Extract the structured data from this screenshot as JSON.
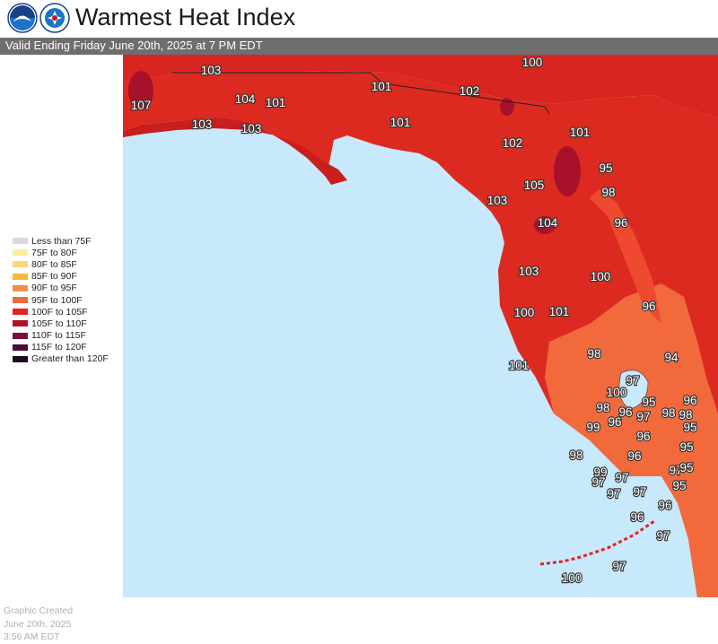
{
  "header": {
    "title": "Warmest Heat Index",
    "subtitle": "Valid Ending Friday June 20th, 2025 at 7 PM EDT",
    "logos": [
      "noaa-logo",
      "nws-logo"
    ]
  },
  "legend": {
    "items": [
      {
        "label": "Less than 75F",
        "color": "#d9d9d9"
      },
      {
        "label": "75F to 80F",
        "color": "#fdee9a"
      },
      {
        "label": "80F to 85F",
        "color": "#fbd779"
      },
      {
        "label": "85F to 90F",
        "color": "#f8b83e"
      },
      {
        "label": "90F to 95F",
        "color": "#f58c4c"
      },
      {
        "label": "95F to 100F",
        "color": "#f06a3c"
      },
      {
        "label": "100F to 105F",
        "color": "#e2261f"
      },
      {
        "label": "105F to 110F",
        "color": "#b5102a"
      },
      {
        "label": "110F to 115F",
        "color": "#7a0f3a"
      },
      {
        "label": "115F to 120F",
        "color": "#4a0a3c"
      },
      {
        "label": "Greater than 120F",
        "color": "#1e0a1e"
      }
    ]
  },
  "created": {
    "line1": "Graphic Created",
    "line2": "June 20th, 2025",
    "line3": "3:56 AM EDT"
  },
  "map": {
    "water_color": "#c8e8fb",
    "land_outside_color": "#ffffff",
    "labels": [
      "107",
      "103",
      "104",
      "101",
      "103",
      "103",
      "101",
      "100",
      "102",
      "101",
      "101",
      "102",
      "105",
      "95",
      "103",
      "98",
      "104",
      "96",
      "103",
      "100",
      "96",
      "100",
      "101",
      "98",
      "94",
      "101",
      "97",
      "100",
      "98",
      "95",
      "96",
      "96",
      "97",
      "98",
      "98",
      "99",
      "96",
      "95",
      "96",
      "95",
      "98",
      "96",
      "97",
      "99",
      "95",
      "97",
      "97",
      "97",
      "95",
      "97",
      "96",
      "96",
      "97",
      "100",
      "97"
    ]
  }
}
